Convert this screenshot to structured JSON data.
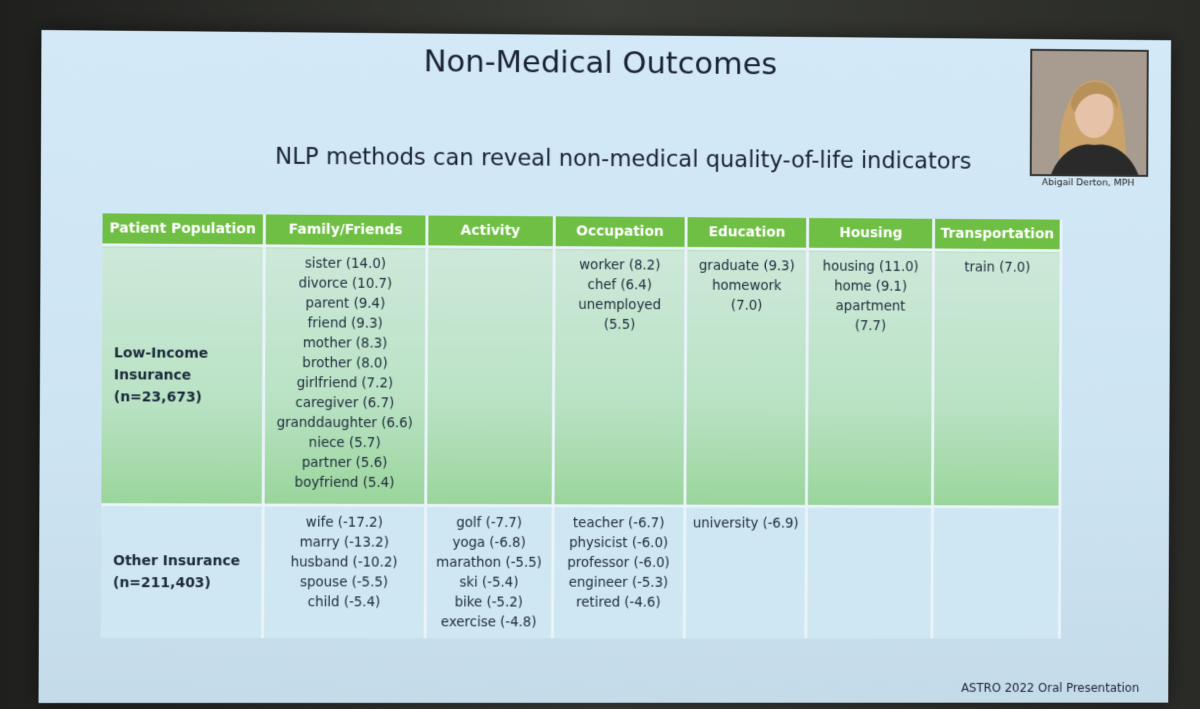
{
  "slide": {
    "title": "Non-Medical Outcomes",
    "subtitle": "NLP methods can reveal non-medical quality-of-life indicators",
    "photo_caption": "Abigail Derton, MPH",
    "footer": "ASTRO 2022 Oral Presentation"
  },
  "table": {
    "headers": [
      "Patient Population",
      "Family/Friends",
      "Activity",
      "Occupation",
      "Education",
      "Housing",
      "Transportation"
    ],
    "rows": [
      {
        "population": [
          "Low-Income",
          "Insurance",
          "(n=23,673)"
        ],
        "family_friends": [
          "sister (14.0)",
          "divorce (10.7)",
          "parent (9.4)",
          "friend (9.3)",
          "mother (8.3)",
          "brother (8.0)",
          "girlfriend (7.2)",
          "caregiver (6.7)",
          "granddaughter (6.6)",
          "niece (5.7)",
          "partner (5.6)",
          "boyfriend (5.4)"
        ],
        "activity": [],
        "occupation": [
          "worker (8.2)",
          "chef (6.4)",
          "unemployed",
          "(5.5)"
        ],
        "education": [
          "graduate (9.3)",
          "homework",
          "(7.0)"
        ],
        "housing": [
          "housing (11.0)",
          "home (9.1)",
          "apartment",
          "(7.7)"
        ],
        "transportation": [
          "train (7.0)"
        ]
      },
      {
        "population": [
          "Other Insurance",
          "(n=211,403)"
        ],
        "family_friends": [
          "wife (-17.2)",
          "marry (-13.2)",
          "husband (-10.2)",
          "spouse (-5.5)",
          "child (-5.4)"
        ],
        "activity": [
          "golf (-7.7)",
          "yoga (-6.8)",
          "marathon (-5.5)",
          "ski (-5.4)",
          "bike (-5.2)",
          "exercise (-4.8)"
        ],
        "occupation": [
          "teacher (-6.7)",
          "physicist (-6.0)",
          "professor (-6.0)",
          "engineer (-5.3)",
          "retired (-4.6)"
        ],
        "education": [
          "university (-6.9)"
        ],
        "housing": [],
        "transportation": []
      }
    ]
  }
}
